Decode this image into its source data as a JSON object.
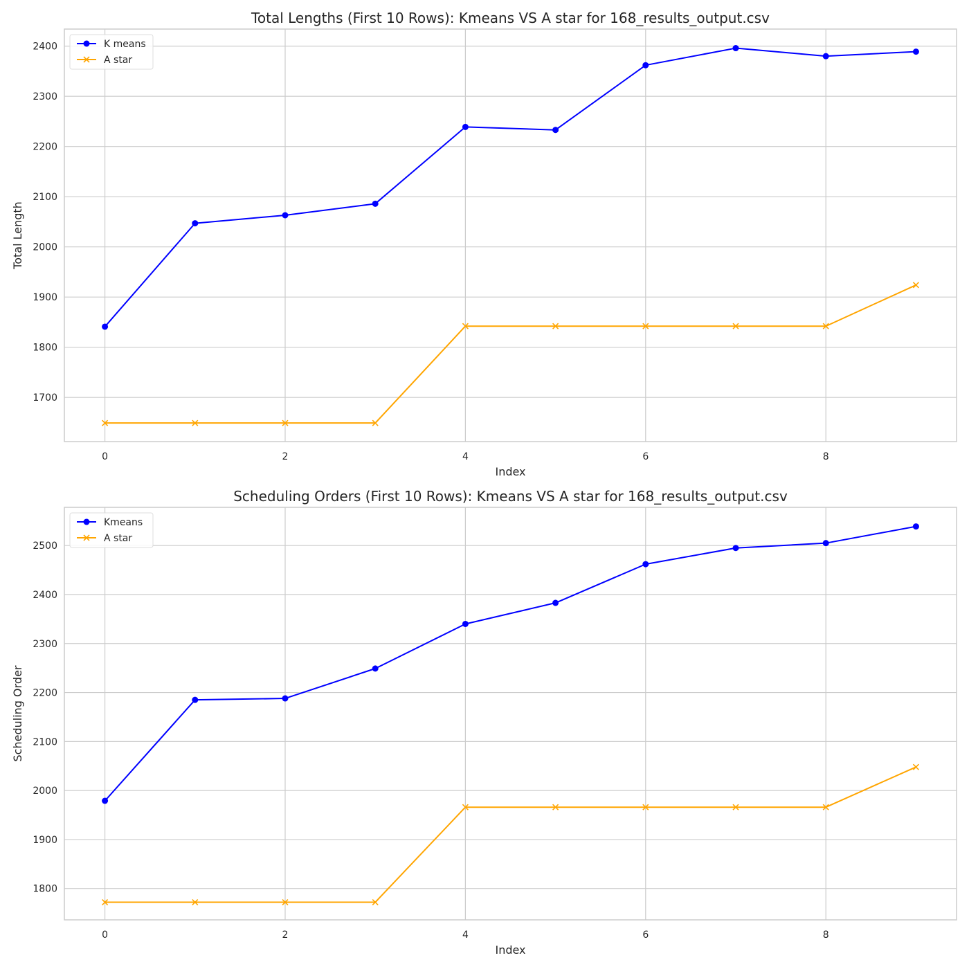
{
  "colors": {
    "series_1": "#0000ff",
    "series_2": "#ffa500",
    "grid": "#cccccc"
  },
  "chart_data": [
    {
      "type": "line",
      "title": "Total Lengths (First 10 Rows): Kmeans VS A star for 168_results_output.csv",
      "xlabel": "Index",
      "ylabel": "Total Length",
      "x": [
        0,
        1,
        2,
        3,
        4,
        5,
        6,
        7,
        8,
        9
      ],
      "xticks": [
        0,
        2,
        4,
        6,
        8
      ],
      "yticks": [
        1700,
        1800,
        1900,
        2000,
        2100,
        2200,
        2300,
        2400
      ],
      "xlim": [
        -0.45,
        9.45
      ],
      "ylim": [
        1612,
        2434
      ],
      "grid": true,
      "legend_position": "top-left",
      "series": [
        {
          "name": "K means",
          "marker": "circle",
          "color": "#0000ff",
          "values": [
            1841,
            2047,
            2063,
            2086,
            2239,
            2233,
            2362,
            2396,
            2380,
            2389
          ]
        },
        {
          "name": "A star",
          "marker": "x",
          "color": "#ffa500",
          "values": [
            1649,
            1649,
            1649,
            1649,
            1842,
            1842,
            1842,
            1842,
            1842,
            1924
          ]
        }
      ]
    },
    {
      "type": "line",
      "title": "Scheduling Orders (First 10 Rows): Kmeans VS A star for 168_results_output.csv",
      "xlabel": "Index",
      "ylabel": "Scheduling Order",
      "x": [
        0,
        1,
        2,
        3,
        4,
        5,
        6,
        7,
        8,
        9
      ],
      "xticks": [
        0,
        2,
        4,
        6,
        8
      ],
      "yticks": [
        1800,
        1900,
        2000,
        2100,
        2200,
        2300,
        2400,
        2500
      ],
      "xlim": [
        -0.45,
        9.45
      ],
      "ylim": [
        1736,
        2578
      ],
      "grid": true,
      "legend_position": "top-left",
      "series": [
        {
          "name": "Kmeans",
          "marker": "circle",
          "color": "#0000ff",
          "values": [
            1979,
            2185,
            2188,
            2249,
            2340,
            2383,
            2462,
            2495,
            2505,
            2539
          ]
        },
        {
          "name": "A star",
          "marker": "x",
          "color": "#ffa500",
          "values": [
            1772,
            1772,
            1772,
            1772,
            1966,
            1966,
            1966,
            1966,
            1966,
            2048
          ]
        }
      ]
    }
  ]
}
